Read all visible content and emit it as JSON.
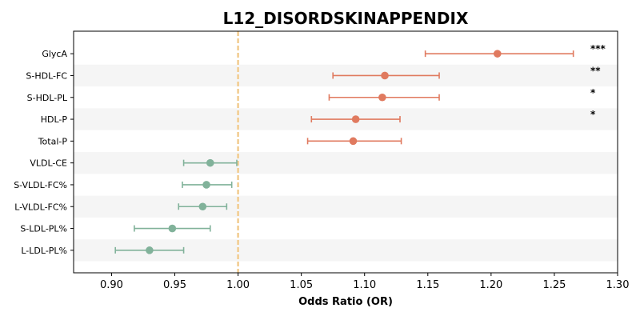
{
  "chart_data": {
    "type": "forest",
    "title": "L12_DISORDSKINAPPENDIX",
    "xlabel": "Odds Ratio (OR)",
    "xlim": [
      0.87,
      1.3
    ],
    "xticks": [
      "0.90",
      "0.95",
      "1.00",
      "1.05",
      "1.10",
      "1.15",
      "1.20",
      "1.25",
      "1.30"
    ],
    "reference_line": 1.0,
    "colors": {
      "positive": "#E07A5F",
      "negative": "#81B29A",
      "reference": "#F2CC8F",
      "band": "#F5F5F5"
    },
    "rows": [
      {
        "label": "GlycA",
        "or": 1.205,
        "lo": 1.148,
        "hi": 1.265,
        "sig": "***"
      },
      {
        "label": "S-HDL-FC",
        "or": 1.116,
        "lo": 1.075,
        "hi": 1.159,
        "sig": "**"
      },
      {
        "label": "S-HDL-PL",
        "or": 1.114,
        "lo": 1.072,
        "hi": 1.159,
        "sig": "*"
      },
      {
        "label": "HDL-P",
        "or": 1.093,
        "lo": 1.058,
        "hi": 1.128,
        "sig": "*"
      },
      {
        "label": "Total-P",
        "or": 1.091,
        "lo": 1.055,
        "hi": 1.129,
        "sig": ""
      },
      {
        "label": "VLDL-CE",
        "or": 0.978,
        "lo": 0.957,
        "hi": 0.999,
        "sig": ""
      },
      {
        "label": "S-VLDL-FC%",
        "or": 0.975,
        "lo": 0.956,
        "hi": 0.995,
        "sig": ""
      },
      {
        "label": "L-VLDL-FC%",
        "or": 0.972,
        "lo": 0.953,
        "hi": 0.991,
        "sig": ""
      },
      {
        "label": "S-LDL-PL%",
        "or": 0.948,
        "lo": 0.918,
        "hi": 0.978,
        "sig": ""
      },
      {
        "label": "L-LDL-PL%",
        "or": 0.93,
        "lo": 0.903,
        "hi": 0.957,
        "sig": ""
      }
    ]
  }
}
